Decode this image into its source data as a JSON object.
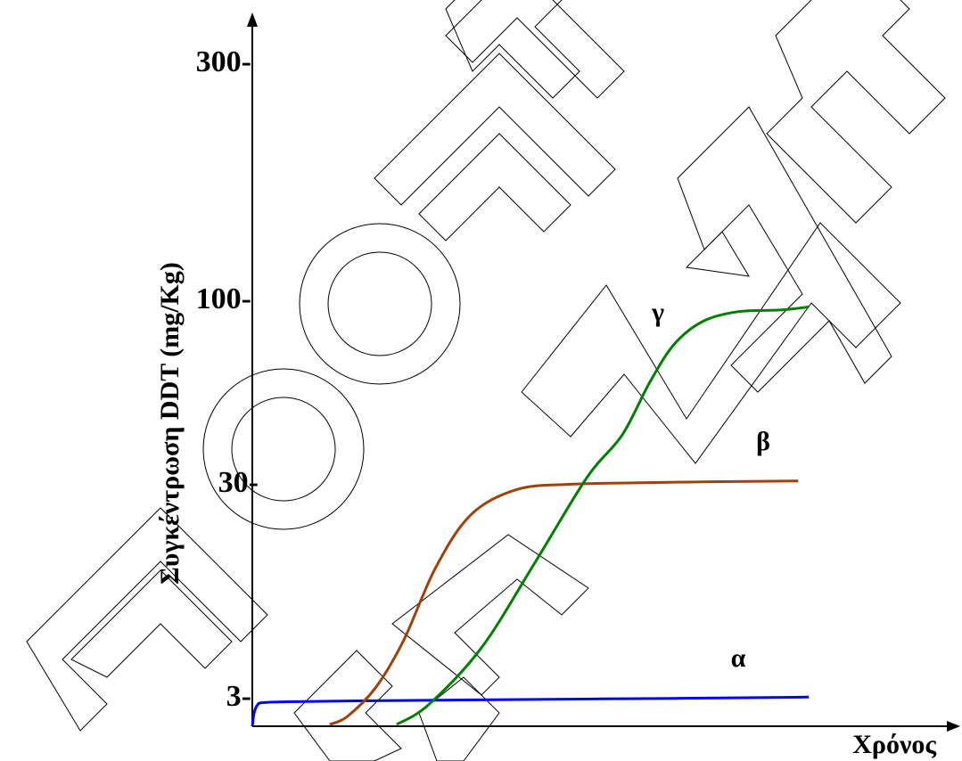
{
  "chart_data": {
    "type": "line",
    "title": "",
    "xlabel": "Χρόνος",
    "ylabel": "Συγκέντρωση DDT (mg/Kg)",
    "y_ticks": [
      {
        "value": 3,
        "label": "3-"
      },
      {
        "value": 30,
        "label": "30-"
      },
      {
        "value": 100,
        "label": "100-"
      },
      {
        "value": 300,
        "label": "300-"
      }
    ],
    "x_ticks": [],
    "grid": false,
    "legend": "none",
    "series": [
      {
        "name": "α",
        "color": "#0000ff",
        "points": [
          [
            0,
            0
          ],
          [
            0.05,
            1.5
          ],
          [
            0.15,
            2.4
          ],
          [
            0.3,
            2.65
          ],
          [
            1,
            2.75
          ],
          [
            3,
            2.85
          ],
          [
            6,
            2.95
          ],
          [
            9,
            3.05
          ],
          [
            12,
            3.15
          ],
          [
            15.8,
            3.3
          ]
        ]
      },
      {
        "name": "β",
        "color": "#a0410a",
        "points": [
          [
            2.2,
            0.2
          ],
          [
            2.7,
            1.1
          ],
          [
            3.5,
            4.5
          ],
          [
            4.3,
            10.5
          ],
          [
            5.2,
            19.6
          ],
          [
            6.2,
            26.3
          ],
          [
            7.5,
            29.5
          ],
          [
            9,
            30.5
          ],
          [
            11,
            31.1
          ],
          [
            13,
            31.5
          ],
          [
            15.5,
            31.8
          ]
        ]
      },
      {
        "name": "γ",
        "color": "#008000",
        "points": [
          [
            4.1,
            0.2
          ],
          [
            5,
            2.4
          ],
          [
            6.5,
            9.5
          ],
          [
            8,
            20.1
          ],
          [
            9.5,
            33.1
          ],
          [
            10.5,
            49.4
          ],
          [
            11.3,
            70
          ],
          [
            12,
            84.5
          ],
          [
            12.8,
            93
          ],
          [
            13.8,
            96.7
          ],
          [
            15,
            97.3
          ],
          [
            15.8,
            98.5
          ]
        ]
      }
    ]
  }
}
